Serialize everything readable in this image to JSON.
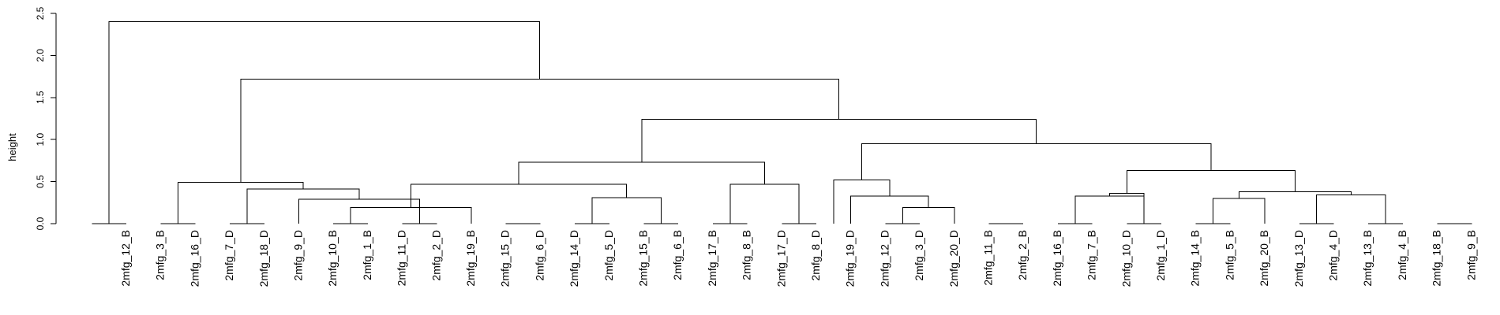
{
  "chart_data": {
    "type": "dendrogram",
    "title": "",
    "xlabel": "",
    "ylabel": "height",
    "ylim": [
      0,
      2.5
    ],
    "yticks": [
      "0.0",
      "0.5",
      "1.0",
      "1.5",
      "2.0",
      "2.5"
    ],
    "leaves": [
      "2mfg_12_B",
      "2mfg_3_B",
      "2mfg_16_D",
      "2mfg_7_D",
      "2mfg_18_D",
      "2mfg_9_D",
      "2mfg_10_B",
      "2mfg_1_B",
      "2mfg_11_D",
      "2mfg_2_D",
      "2mfg_19_B",
      "2mfg_15_D",
      "2mfg_6_D",
      "2mfg_14_D",
      "2mfg_5_D",
      "2mfg_15_B",
      "2mfg_6_B",
      "2mfg_17_B",
      "2mfg_8_B",
      "2mfg_17_D",
      "2mfg_8_D",
      "2mfg_19_D",
      "2mfg_12_D",
      "2mfg_3_D",
      "2mfg_20_D",
      "2mfg_11_B",
      "2mfg_2_B",
      "2mfg_16_B",
      "2mfg_7_B",
      "2mfg_10_D",
      "2mfg_1_D",
      "2mfg_14_B",
      "2mfg_5_B",
      "2mfg_20_B",
      "2mfg_13_D",
      "2mfg_4_D",
      "2mfg_13_B",
      "2mfg_4_B",
      "2mfg_18_B",
      "2mfg_9_B"
    ],
    "merges": [
      {
        "left": 0,
        "right": 1,
        "height": 0.0
      },
      {
        "left": 2,
        "right": 3,
        "height": 0.0
      },
      {
        "left": 4,
        "right": 5,
        "height": 0.0
      },
      {
        "left": 7,
        "right": 8,
        "height": 0.0
      },
      {
        "left": 9,
        "right": 10,
        "height": 0.0
      },
      {
        "left": 12,
        "right": 13,
        "height": 0.0
      },
      {
        "left": 14,
        "right": 15,
        "height": 0.0
      },
      {
        "left": 16,
        "right": 17,
        "height": 0.0
      },
      {
        "left": 18,
        "right": 19,
        "height": 0.0
      },
      {
        "left": 20,
        "right": 21,
        "height": 0.0
      },
      {
        "left": 23,
        "right": 24,
        "height": 0.0
      },
      {
        "left": 26,
        "right": 27,
        "height": 0.0
      },
      {
        "left": 28,
        "right": 29,
        "height": 0.0
      },
      {
        "left": 30,
        "right": 31,
        "height": 0.0
      },
      {
        "left": 32,
        "right": 33,
        "height": 0.0
      },
      {
        "left": 35,
        "right": 36,
        "height": 0.0
      },
      {
        "left": 37,
        "right": 38,
        "height": 0.0
      },
      {
        "left": 39,
        "right": 40,
        "height": 0.0
      },
      {
        "left": 11,
        "right": -4,
        "height": 0.19
      },
      {
        "left": 25,
        "right": -11,
        "height": 0.19
      },
      {
        "left": -5,
        "right": 6,
        "height": 0.29
      },
      {
        "left": 34,
        "right": -15,
        "height": 0.3
      },
      {
        "left": -7,
        "right": -8,
        "height": 0.31
      },
      {
        "left": -9,
        "right": -10,
        "height": 0.47
      },
      {
        "left": 22,
        "right": -20,
        "height": 0.33
      },
      {
        "left": -16,
        "right": -17,
        "height": 0.34
      },
      {
        "left": -13,
        "right": -14,
        "height": 0.33
      },
      {
        "left": 30.5,
        "right": -27,
        "height": 0.36
      },
      {
        "left": -22,
        "right": -26,
        "height": 0.38
      },
      {
        "left": -3,
        "right": -21,
        "height": 0.41
      },
      {
        "left": -2,
        "right": -30,
        "height": 0.49
      },
      {
        "left": -19,
        "right": -23,
        "height": 0.47
      },
      {
        "left": -32,
        "right": -24,
        "height": 0.73
      },
      {
        "left": -25,
        "right": 21.5,
        "height": 0.52
      },
      {
        "left": -28,
        "right": -29,
        "height": 0.63
      },
      {
        "left": -34,
        "right": -35,
        "height": 0.95
      },
      {
        "left": -33,
        "right": -36,
        "height": 1.24
      },
      {
        "left": -31,
        "right": -37,
        "height": 1.72
      },
      {
        "left": -1,
        "right": -38,
        "height": 2.4
      }
    ]
  }
}
